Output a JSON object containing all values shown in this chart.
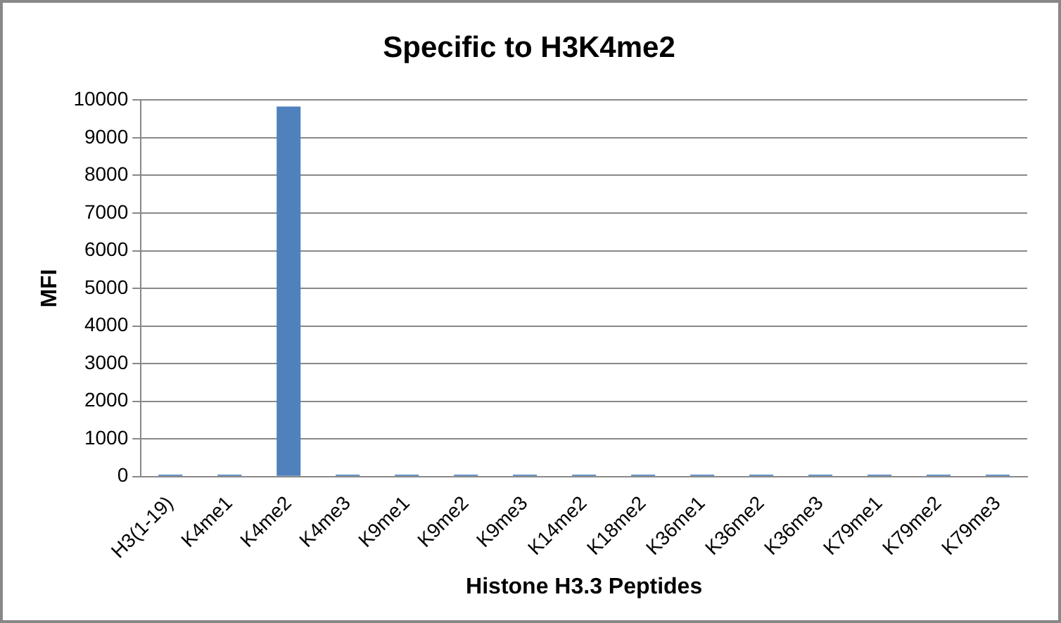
{
  "chart_data": {
    "type": "bar",
    "title": "Specific to H3K4me2",
    "xlabel": "Histone H3.3 Peptides",
    "ylabel": "MFI",
    "categories": [
      "H3(1-19)",
      "K4me1",
      "K4me2",
      "K4me3",
      "K9me1",
      "K9me2",
      "K9me3",
      "K14me2",
      "K18me2",
      "K36me1",
      "K36me2",
      "K36me3",
      "K79me1",
      "K79me2",
      "K79me3"
    ],
    "values": [
      50,
      50,
      9830,
      50,
      50,
      50,
      50,
      50,
      50,
      50,
      50,
      50,
      50,
      50,
      50
    ],
    "color": "#4f81bd",
    "ylim": [
      0,
      10000
    ],
    "yticks": [
      0,
      1000,
      2000,
      3000,
      4000,
      5000,
      6000,
      7000,
      8000,
      9000,
      10000
    ],
    "grid": "y",
    "legend": false
  }
}
